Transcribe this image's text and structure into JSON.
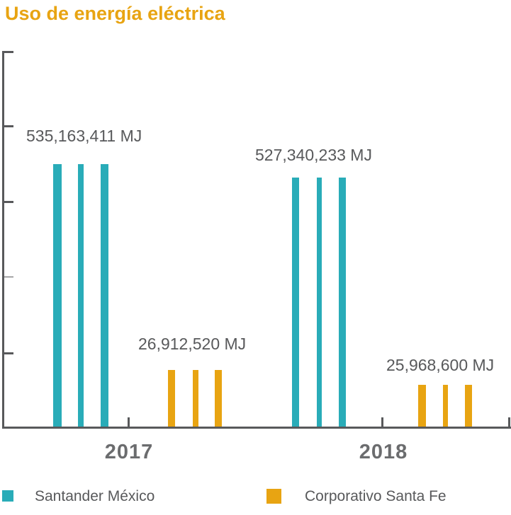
{
  "title": "Uso de energía eléctrica",
  "colors": {
    "orange": "#E8A412",
    "teal": "#29ACB8",
    "text_gray": "#58595B"
  },
  "legend": {
    "position": "bottom",
    "items": [
      {
        "label": "Santander México",
        "color_key": "teal"
      },
      {
        "label": "Corporativo Santa Fe",
        "color_key": "orange"
      }
    ]
  },
  "chart_data": {
    "type": "bar",
    "title": "Uso de energía eléctrica",
    "unit": "MJ",
    "categories": [
      "2017",
      "2018"
    ],
    "series": [
      {
        "name": "Santander México",
        "color": "#29ACB8",
        "values": [
          535163411,
          527340233
        ],
        "value_labels": [
          "535,163,411 MJ",
          "527,340,233 MJ"
        ]
      },
      {
        "name": "Corporativo Santa Fe",
        "color": "#E8A412",
        "values": [
          26912520,
          25968600
        ],
        "value_labels": [
          "26,912,520 MJ",
          "25,968,600 MJ"
        ]
      }
    ],
    "y_axis": {
      "tick_count": 5,
      "tick_labels_visible": false
    },
    "x_axis": {
      "tick_labels_visible": true
    },
    "grid": false,
    "legend_position": "bottom",
    "bar_fill_style": "vertical-stripes",
    "bar_heights_to_scale": false
  }
}
